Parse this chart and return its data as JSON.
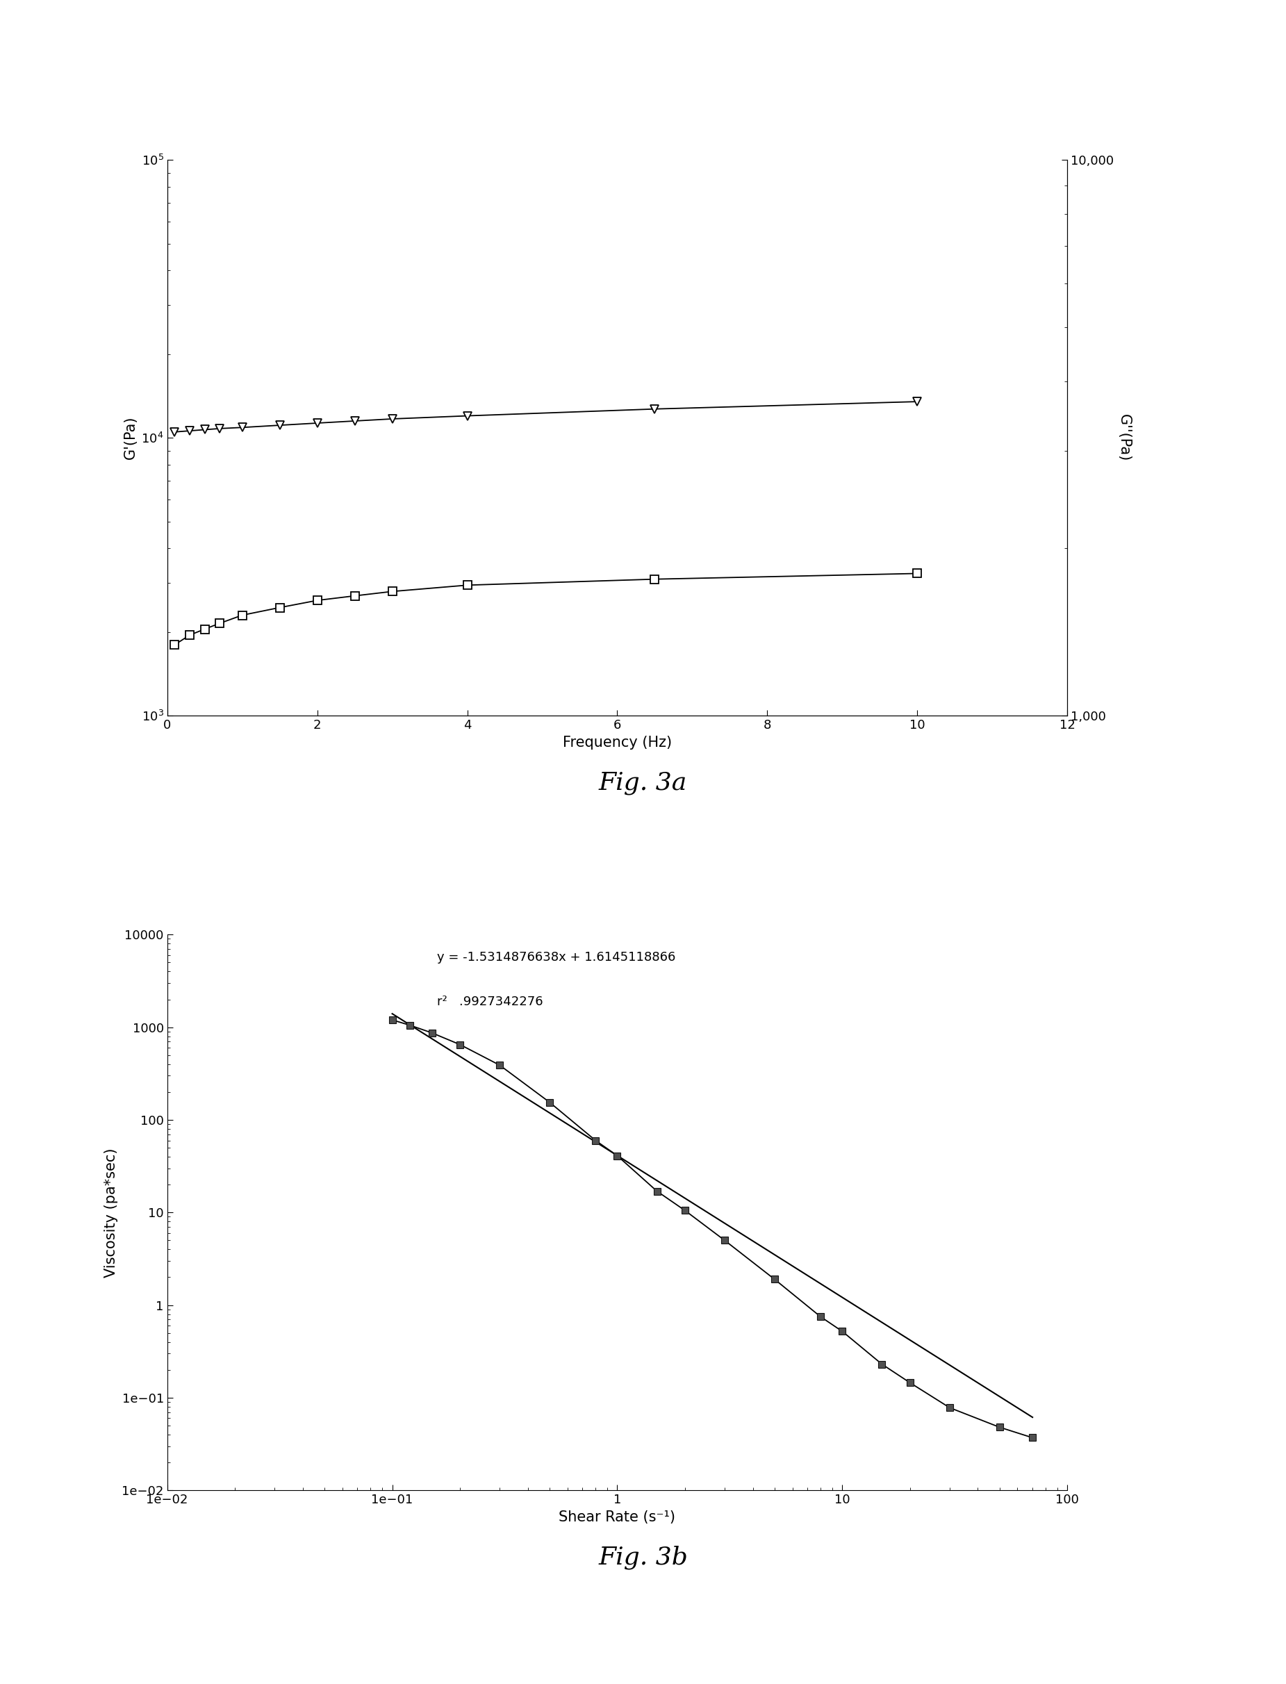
{
  "fig3a": {
    "title": "Fig. 3a",
    "xlabel": "Frequency (Hz)",
    "ylabel_left": "G'(Pa)",
    "ylabel_right": "G''(Pa)",
    "xlim": [
      0,
      12
    ],
    "ylim_left": [
      1000,
      100000
    ],
    "ylim_right": [
      1000,
      10000
    ],
    "gprime_freq": [
      0.1,
      0.3,
      0.5,
      0.7,
      1.0,
      1.5,
      2.0,
      2.5,
      3.0,
      4.0,
      6.5,
      10.0
    ],
    "gprime_vals": [
      10500,
      10600,
      10700,
      10800,
      10900,
      11100,
      11300,
      11500,
      11700,
      12000,
      12700,
      13500
    ],
    "gdprime_freq": [
      0.1,
      0.3,
      0.5,
      0.7,
      1.0,
      1.5,
      2.0,
      2.5,
      3.0,
      4.0,
      6.5,
      10.0
    ],
    "gdprime_vals": [
      1800,
      1950,
      2050,
      2150,
      2300,
      2450,
      2600,
      2700,
      2800,
      2950,
      3100,
      3250
    ],
    "background_color": "#ffffff",
    "line_color": "#000000"
  },
  "fig3b": {
    "title": "Fig. 3b",
    "xlabel": "Shear Rate (s⁻¹)",
    "ylabel": "Viscosity (pa*sec)",
    "xlim": [
      0.01,
      100
    ],
    "ylim": [
      0.01,
      10000
    ],
    "equation": "y = -1.5314876638x + 1.6145118866",
    "r2_text": "r²   .9927342276",
    "shear_rate": [
      0.1,
      0.12,
      0.15,
      0.2,
      0.3,
      0.5,
      0.8,
      1.0,
      1.5,
      2.0,
      3.0,
      5.0,
      8.0,
      10.0,
      15.0,
      20.0,
      30.0,
      50.0,
      70.0
    ],
    "viscosity": [
      1200,
      1050,
      870,
      650,
      390,
      155,
      60,
      41,
      17,
      10.5,
      5.0,
      1.9,
      0.75,
      0.52,
      0.23,
      0.145,
      0.078,
      0.048,
      0.037
    ],
    "fit_slope": -1.5314876638,
    "fit_intercept": 1.6145118866,
    "fit_xmin": 0.1,
    "fit_xmax": 70,
    "background_color": "#ffffff",
    "line_color": "#000000"
  }
}
